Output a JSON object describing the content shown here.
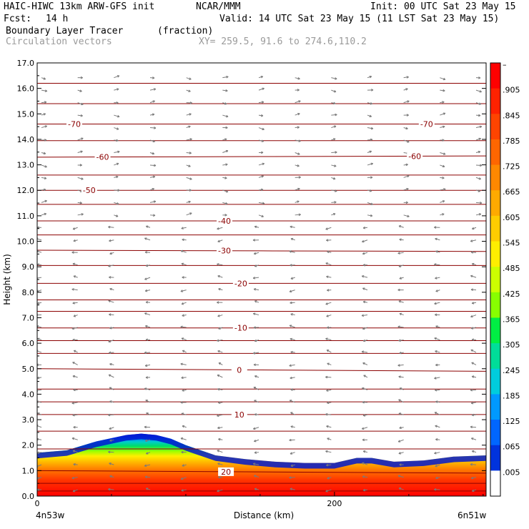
{
  "header": {
    "model": "HAIC-HIWC 13km ARW-GFS init",
    "org": "NCAR/MMM",
    "init": "Init: 00 UTC Sat 23 May 15",
    "fcst_label": "Fcst:",
    "fcst_value": "14 h",
    "valid": "Valid: 14 UTC Sat 23 May 15 (11 LST Sat 23 May 15)",
    "field_name": "Boundary Layer Tracer",
    "field_units": "(fraction)",
    "field2": "Circulation vectors",
    "xy": "XY= 259.5, 91.6 to 274.6,110.2"
  },
  "chart_data": {
    "type": "heatmap",
    "ylabel": "Height (km)",
    "xlabel": "Distance (km)",
    "x_range_km": [
      0,
      302
    ],
    "ylim": [
      0,
      17
    ],
    "yticks": [
      "0.0",
      "1.0",
      "2.0",
      "3.0",
      "4.0",
      "5.0",
      "6.0",
      "7.0",
      "8.0",
      "9.0",
      "10.0",
      "11.0",
      "12.0",
      "13.0",
      "14.0",
      "15.0",
      "16.0",
      "17.0"
    ],
    "xtick_values": [
      0,
      200
    ],
    "xticks": [
      "0",
      "200"
    ],
    "endpoint_left": "4n53w",
    "endpoint_right": "6n51w",
    "colorbar": {
      "labels": [
        "–",
        ".905",
        ".845",
        ".785",
        ".725",
        ".665",
        ".605",
        ".545",
        ".485",
        ".425",
        ".365",
        ".305",
        ".245",
        ".185",
        ".125",
        ".065",
        ".005"
      ],
      "colors": [
        "#ff0000",
        "#ff2200",
        "#ff4400",
        "#ff6600",
        "#ff8800",
        "#ffaa00",
        "#ffcc00",
        "#ffee00",
        "#ccff00",
        "#88ff00",
        "#00ee44",
        "#00dd99",
        "#00ccdd",
        "#0099ff",
        "#0066ff",
        "#0033dd",
        "#ffffff"
      ]
    },
    "boundary_layer_top_km": {
      "x": [
        0,
        20,
        40,
        60,
        70,
        80,
        90,
        100,
        110,
        120,
        140,
        160,
        180,
        200,
        215,
        225,
        240,
        260,
        280,
        302
      ],
      "y": [
        1.7,
        1.8,
        2.15,
        2.4,
        2.45,
        2.4,
        2.25,
        2.0,
        1.8,
        1.6,
        1.45,
        1.35,
        1.3,
        1.3,
        1.5,
        1.5,
        1.35,
        1.4,
        1.55,
        1.6
      ]
    },
    "temperature_contours": [
      {
        "label": "-70",
        "label_x": [
          25,
          262
        ],
        "y": [
          14.6,
          14.6
        ]
      },
      {
        "label": "-60",
        "label_x": [
          44,
          254
        ],
        "y": [
          13.3,
          13.35
        ]
      },
      {
        "label": "-50",
        "label_x": [
          35
        ],
        "y": [
          12.0,
          12.0
        ]
      },
      {
        "label": "-40",
        "label_x": [
          126
        ],
        "y": [
          10.8,
          10.8
        ]
      },
      {
        "label": "-30",
        "label_x": [
          126
        ],
        "y": [
          9.65,
          9.6
        ]
      },
      {
        "label": "-20",
        "label_x": [
          137
        ],
        "y": [
          8.35,
          8.35
        ]
      },
      {
        "label": "-10",
        "label_x": [
          137
        ],
        "y": [
          6.6,
          6.6
        ]
      },
      {
        "label": "0",
        "label_x": [
          136
        ],
        "y": [
          5.0,
          4.9
        ]
      },
      {
        "label": "10",
        "label_x": [
          136
        ],
        "y": [
          3.2,
          3.2
        ]
      },
      {
        "label": "20",
        "label_x": [
          127
        ],
        "y": [
          1.0,
          0.9
        ]
      }
    ],
    "other_isotherms_km": [
      16.2,
      15.4,
      13.95,
      12.6,
      11.45,
      10.25,
      9.05,
      7.7,
      7.25,
      6.1,
      5.6,
      4.2,
      3.7,
      2.55,
      1.85,
      0.5,
      0.2
    ]
  }
}
